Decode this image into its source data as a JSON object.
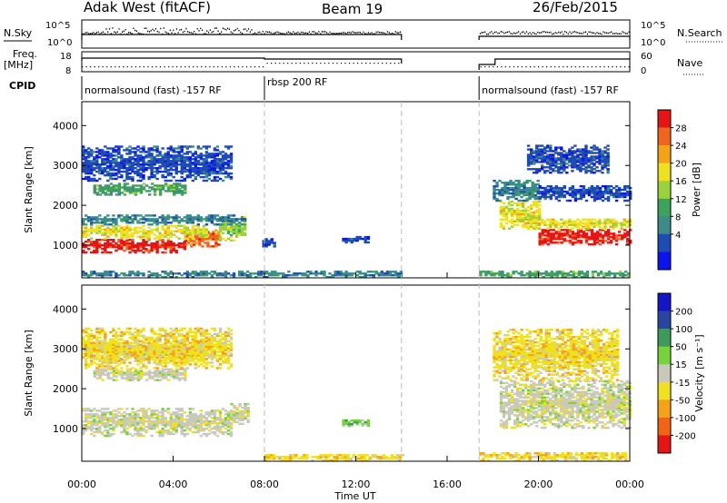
{
  "header": {
    "title": "Adak West (fitACF)",
    "beam": "Beam 19",
    "date": "26/Feb/2015"
  },
  "panels": {
    "nsky": {
      "label": "N.Sky",
      "ticks": [
        "10^5",
        "10^0"
      ]
    },
    "freq": {
      "label1": "Freq.",
      "label2": "[MHz]",
      "ticks": [
        "18",
        "8"
      ]
    },
    "cpid": {
      "label": "CPID"
    },
    "right_labels": {
      "nsearch": "N.Search",
      "nsearch_ticks": [
        "10^5",
        "10^0"
      ],
      "nave": "Nave",
      "nave_ticks": [
        "60",
        "0"
      ]
    }
  },
  "cpid_segments": [
    {
      "label": "normalsound (fast) -157 RF",
      "start": 0.0,
      "end": 8.0
    },
    {
      "label": "rbsp 200 RF",
      "start": 8.0,
      "end": 14.0
    },
    {
      "label": "normalsound (fast) -157 RF",
      "start": 17.4,
      "end": 24.0
    }
  ],
  "colors": {
    "power": [
      "#0b14f0",
      "#1e4bb4",
      "#3c8a8a",
      "#3da35a",
      "#9ad23c",
      "#f0e11e",
      "#f5a314",
      "#f0641e",
      "#e61414"
    ],
    "velocity": [
      "#e61414",
      "#f06414",
      "#f5a314",
      "#f0e11e",
      "#c8c8bc",
      "#78d23c",
      "#3c9a5a",
      "#2846a0",
      "#1414c8"
    ]
  },
  "chart_data": {
    "type": "heatmap",
    "xlabel": "Time UT",
    "x_ticks": [
      "00:00",
      "04:00",
      "08:00",
      "12:00",
      "16:00",
      "20:00",
      "00:00"
    ],
    "xlim_hours": [
      0,
      24
    ],
    "data_gap_hours": [
      14.0,
      17.4
    ],
    "power_panel": {
      "ylabel": "Slant Range [km]",
      "ylim": [
        180,
        4600
      ],
      "y_ticks": [
        "4000",
        "3000",
        "2000",
        "1000"
      ],
      "colorbar_label": "Power [dB]",
      "colorbar_ticks": [
        "28",
        "24",
        "20",
        "16",
        "12",
        "8",
        "4"
      ],
      "bands": [
        {
          "t0": 0.0,
          "t1": 4.5,
          "r0": 800,
          "r1": 1150,
          "level": 8
        },
        {
          "t0": 4.5,
          "t1": 6.0,
          "r0": 950,
          "r1": 1400,
          "level": 7
        },
        {
          "t0": 6.0,
          "t1": 7.2,
          "r0": 1100,
          "r1": 1700,
          "level": 4
        },
        {
          "t0": 0.0,
          "t1": 5.5,
          "r0": 1150,
          "r1": 1500,
          "level": 5
        },
        {
          "t0": 0.0,
          "t1": 7.2,
          "r0": 1500,
          "r1": 1750,
          "level": 2
        },
        {
          "t0": 0.5,
          "t1": 4.5,
          "r0": 2250,
          "r1": 2550,
          "level": 3
        },
        {
          "t0": 0.0,
          "t1": 6.5,
          "r0": 2600,
          "r1": 3500,
          "level": 1
        },
        {
          "t0": 7.9,
          "t1": 8.4,
          "r0": 950,
          "r1": 1150,
          "level": 1
        },
        {
          "t0": 11.4,
          "t1": 12.5,
          "r0": 1050,
          "r1": 1200,
          "level": 1
        },
        {
          "t0": 18.3,
          "t1": 20.0,
          "r0": 1400,
          "r1": 2100,
          "level": 5
        },
        {
          "t0": 20.0,
          "t1": 24.0,
          "r0": 1000,
          "r1": 1400,
          "level": 8
        },
        {
          "t0": 19.5,
          "t1": 24.0,
          "r0": 1400,
          "r1": 1650,
          "level": 5
        },
        {
          "t0": 18.0,
          "t1": 20.0,
          "r0": 2100,
          "r1": 2600,
          "level": 2
        },
        {
          "t0": 20.0,
          "t1": 24.0,
          "r0": 2100,
          "r1": 2500,
          "level": 1
        },
        {
          "t0": 19.5,
          "t1": 23.0,
          "r0": 2800,
          "r1": 3500,
          "level": 1
        },
        {
          "t0": 0.0,
          "t1": 14.0,
          "r0": 180,
          "r1": 330,
          "level": 2
        },
        {
          "t0": 17.4,
          "t1": 24.0,
          "r0": 180,
          "r1": 330,
          "level": 3
        }
      ]
    },
    "velocity_panel": {
      "ylabel": "Slant Range [km]",
      "ylim": [
        180,
        4600
      ],
      "y_ticks": [
        "4000",
        "3000",
        "2000",
        "1000"
      ],
      "colorbar_label": "Velocity [m s⁻¹]",
      "colorbar_ticks": [
        "200",
        "100",
        "50",
        "15",
        "-15",
        "-50",
        "-100",
        "-200"
      ],
      "bands": [
        {
          "t0": 0.0,
          "t1": 6.5,
          "r0": 800,
          "r1": 1500,
          "level": 4
        },
        {
          "t0": 6.5,
          "t1": 7.3,
          "r0": 1100,
          "r1": 1600,
          "level": 4
        },
        {
          "t0": 0.5,
          "t1": 4.5,
          "r0": 2200,
          "r1": 2500,
          "level": 4
        },
        {
          "t0": 1.0,
          "t1": 5.0,
          "r0": 2700,
          "r1": 3100,
          "level": 4
        },
        {
          "t0": 0.0,
          "t1": 6.5,
          "r0": 2500,
          "r1": 3500,
          "level": 3
        },
        {
          "t0": 11.4,
          "t1": 12.5,
          "r0": 1050,
          "r1": 1200,
          "level": 5
        },
        {
          "t0": 18.3,
          "t1": 24.0,
          "r0": 1000,
          "r1": 2200,
          "level": 4
        },
        {
          "t0": 18.0,
          "t1": 23.5,
          "r0": 2200,
          "r1": 3500,
          "level": 3
        },
        {
          "t0": 8.0,
          "t1": 14.0,
          "r0": 180,
          "r1": 330,
          "level": 3
        },
        {
          "t0": 17.4,
          "t1": 24.0,
          "r0": 180,
          "r1": 400,
          "level": 3
        }
      ]
    }
  }
}
